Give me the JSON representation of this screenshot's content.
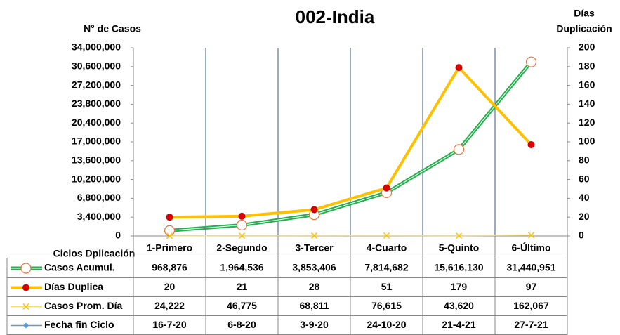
{
  "chart_data": {
    "type": "line",
    "title": "002-India",
    "ylabel": "N° de Casos",
    "y2label": [
      "Días",
      "Duplicación"
    ],
    "table_header": "Ciclos Dplicación",
    "categories": [
      "1-Primero",
      "2-Segundo",
      "3-Tercer",
      "4-Cuarto",
      "5-Quinto",
      "6-Último"
    ],
    "ylim": [
      0,
      34000000
    ],
    "yticks": [
      0,
      {
        "value": 3400000,
        "label": "3,400,000"
      },
      {
        "value": 6800000,
        "label": "6,800,000"
      },
      {
        "value": 10200000,
        "label": "10,200,000"
      },
      {
        "value": 13600000,
        "label": "13,600,000"
      },
      {
        "value": 17000000,
        "label": "17,000,000"
      },
      {
        "value": 20400000,
        "label": "20,400,000"
      },
      {
        "value": 23800000,
        "label": "23,800,000"
      },
      {
        "value": 27200000,
        "label": "27,200,000"
      },
      {
        "value": 30600000,
        "label": "30,600,000"
      },
      {
        "value": 34000000,
        "label": "34,000,000"
      }
    ],
    "y2lim": [
      0,
      200
    ],
    "y2ticks": [
      0,
      20,
      40,
      60,
      80,
      100,
      120,
      140,
      160,
      180,
      200
    ],
    "series": [
      {
        "name": "Casos Acumul.",
        "color": "#22b14c",
        "values": [
          968876,
          1964536,
          3853406,
          7814682,
          15616130,
          31440951
        ],
        "value_labels": [
          "968,876",
          "1,964,536",
          "3,853,406",
          "7,814,682",
          "15,616,130",
          "31,440,951"
        ]
      },
      {
        "name": "Días Duplica",
        "color": "#ffc000",
        "axis": "y2",
        "values": [
          20,
          21,
          28,
          51,
          179,
          97
        ]
      },
      {
        "name": "Casos Prom. Día",
        "color": "#ffd966",
        "values": [
          24222,
          46775,
          68811,
          76615,
          43620,
          162067
        ],
        "value_labels": [
          "24,222",
          "46,775",
          "68,811",
          "76,615",
          "43,620",
          "162,067"
        ]
      },
      {
        "name": "Fecha fin Ciclo",
        "color": "#5b9bd5",
        "values": [
          "16-7-20",
          "6-8-20",
          "3-9-20",
          "24-10-20",
          "21-4-21",
          "27-7-21"
        ]
      }
    ]
  }
}
